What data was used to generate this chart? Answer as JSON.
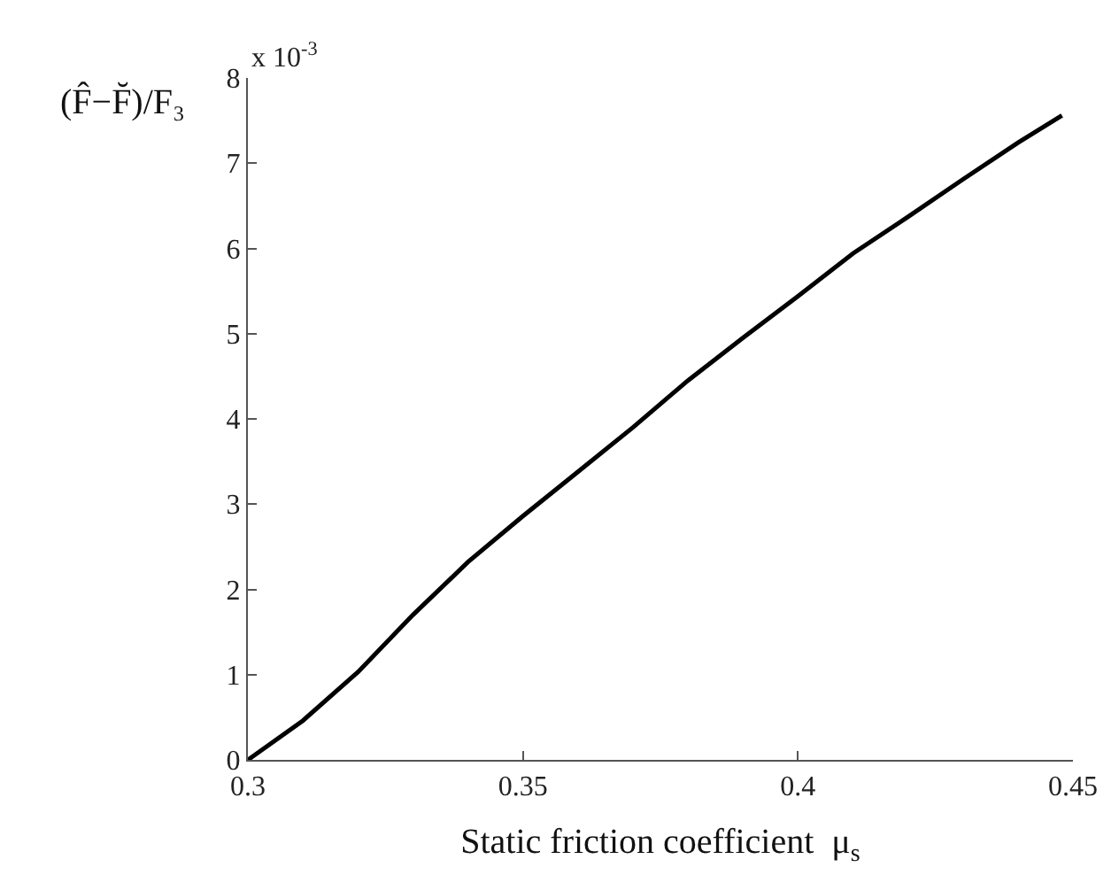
{
  "chart_data": {
    "type": "line",
    "xlabel": "Static friction coefficient  μ$_{s}$",
    "ylabel": "(F̂−F̆)/F₃",
    "annotations": [
      "x 10$^{-3}$"
    ],
    "x": [
      0.3,
      0.31,
      0.32,
      0.33,
      0.34,
      0.35,
      0.36,
      0.37,
      0.38,
      0.39,
      0.4,
      0.41,
      0.42,
      0.43,
      0.44,
      0.448
    ],
    "series": [
      {
        "color": "#000000",
        "values": [
          0,
          0.46,
          1.03,
          1.7,
          2.32,
          2.86,
          3.38,
          3.9,
          4.45,
          4.95,
          5.44,
          5.94,
          6.37,
          6.81,
          7.24,
          7.56
        ]
      }
    ],
    "xlim": [
      0.3,
      0.45
    ],
    "xticks": [
      0.3,
      0.35,
      0.4,
      0.45
    ],
    "ylim": [
      0,
      8
    ],
    "yticks": [
      0,
      1,
      2,
      3,
      4,
      5,
      6,
      7,
      8
    ],
    "marker": "none",
    "line_style": "solid"
  }
}
